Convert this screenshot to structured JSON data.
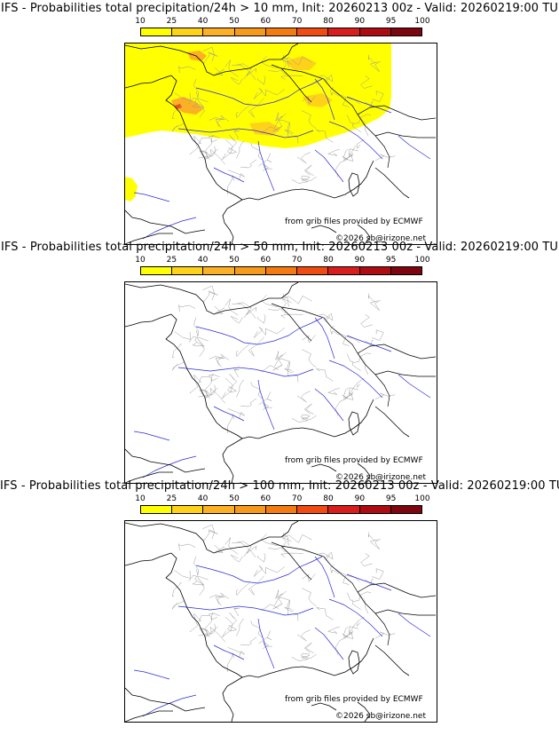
{
  "panels": [
    {
      "title": "IFS - Probabilities total precipitation/24h > 10 mm, Init: 20260213 00z - Valid: 20260219:00 TU",
      "has_precip": true,
      "credit_line1": "from grib files provided by ECMWF",
      "credit_line2": "©2026 sb@irizone.net"
    },
    {
      "title": "IFS - Probabilities total precipitation/24h > 50 mm, Init: 20260213 00z - Valid: 20260219:00 TU",
      "has_precip": false,
      "credit_line1": "from grib files provided by ECMWF",
      "credit_line2": "©2026 sb@irizone.net"
    },
    {
      "title": "IFS - Probabilities total precipitation/24h > 100 mm, Init: 20260213 00z - Valid: 20260219:00 TU",
      "has_precip": false,
      "credit_line1": "from grib files provided by ECMWF",
      "credit_line2": "©2026 sb@irizone.net"
    }
  ],
  "colorbar": {
    "ticks": [
      "10",
      "25",
      "40",
      "50",
      "60",
      "70",
      "80",
      "90",
      "95",
      "100"
    ],
    "colors": [
      "#ffff00",
      "#ffd21a",
      "#fbb025",
      "#f79a1c",
      "#f47a12",
      "#ef4b12",
      "#d81d1d",
      "#ac0c12",
      "#7c0510"
    ]
  },
  "map_colors": {
    "coast": "#000000",
    "border": "#000000",
    "rivers": "#2b2bd8",
    "regions": "#9a9a9a"
  }
}
